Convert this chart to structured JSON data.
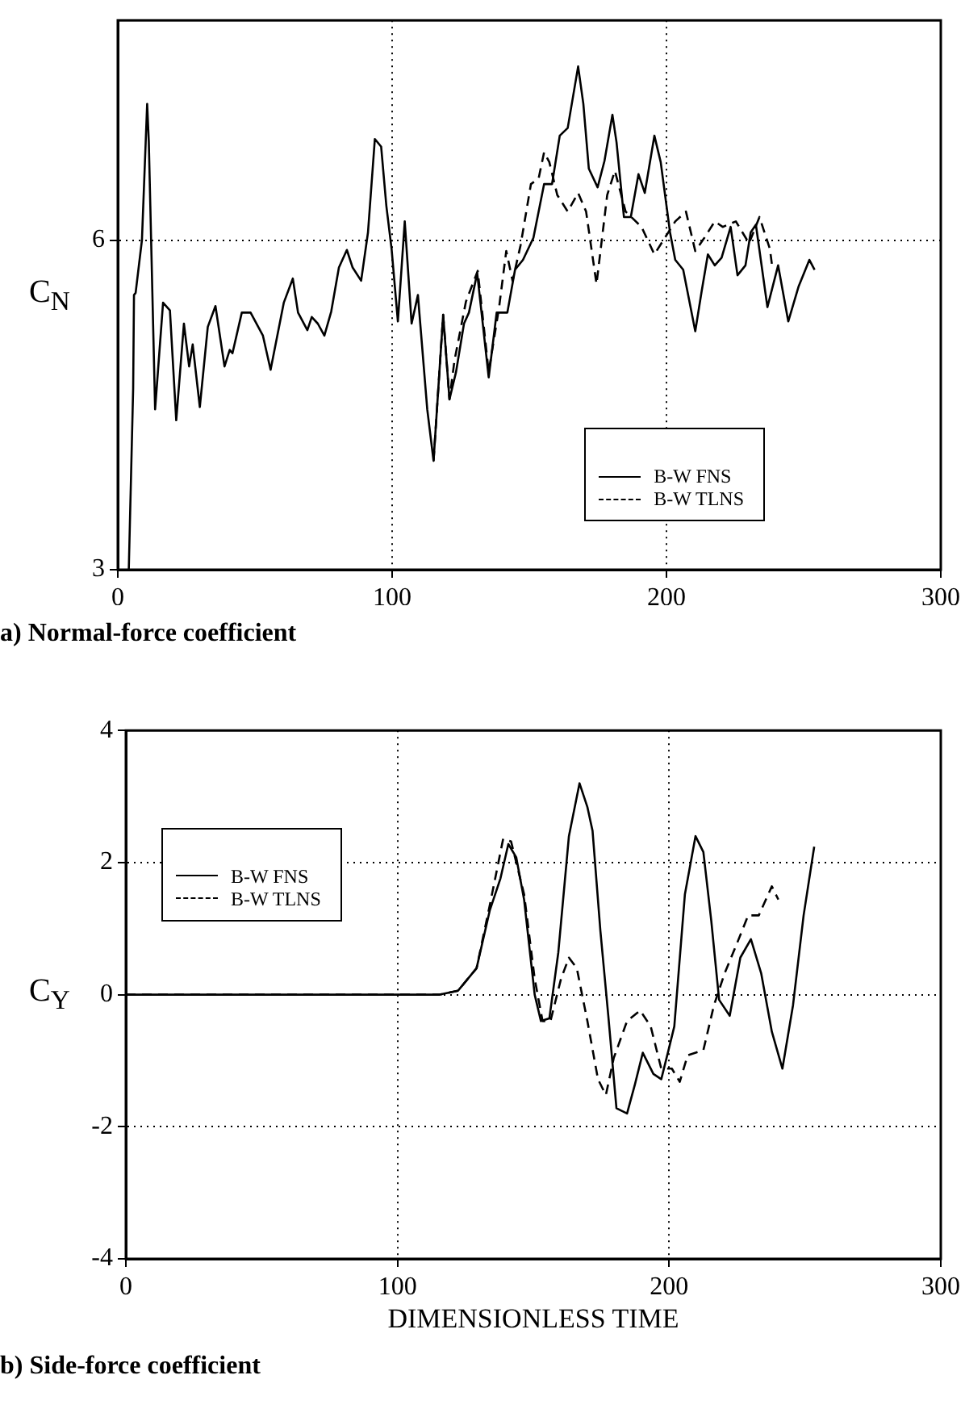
{
  "chart_data": [
    {
      "type": "line",
      "title": "a) Normal-force coefficient",
      "ylabel": "C$_{N}$",
      "xlim": [
        0,
        300
      ],
      "xticks": [
        0,
        100,
        200,
        300
      ],
      "ylim": [
        3,
        8
      ],
      "yticks": [
        3,
        6
      ],
      "grid": true,
      "legend": "bottom right",
      "marker": "none",
      "series": [
        {
          "name": "B-W FNS",
          "color": "#000000",
          "line_style": "solid",
          "x": [
            4,
            5.6,
            5.9,
            6.5,
            8.8,
            10.7,
            11.3,
            13.6,
            16.5,
            19,
            21.3,
            24.1,
            26,
            27.3,
            29.9,
            32.8,
            35.6,
            38.9,
            40.8,
            41.8,
            45.2,
            48.4,
            52.9,
            55.7,
            60.5,
            63.8,
            65.7,
            69.1,
            70.7,
            72.9,
            75.3,
            77.8,
            80.6,
            83.5,
            85.6,
            88.7,
            91.2,
            93.7,
            96,
            97.9,
            99.8,
            102.1,
            104.6,
            107.1,
            109.4,
            112.8,
            115.1,
            118.6,
            120.9,
            123.3,
            126.2,
            128,
            131,
            135.2,
            138.1,
            142,
            144.8,
            147.7,
            151.5,
            155.4,
            158.3,
            161.1,
            164,
            167.8,
            169.7,
            171.7,
            174.9,
            177.4,
            180.3,
            181.8,
            184.5,
            187,
            189.8,
            192.1,
            195.6,
            197.9,
            201.3,
            203.2,
            206.1,
            210.5,
            212.8,
            215.1,
            217.6,
            220.1,
            223.4,
            225.9,
            228.8,
            230.7,
            232.6,
            236.8,
            240.7,
            244.4,
            248.2,
            252.1,
            254
          ],
          "values": [
            3,
            4.65,
            5.5,
            5.52,
            6,
            7.24,
            6.9,
            4.46,
            5.43,
            5.36,
            4.36,
            5.24,
            4.85,
            5.05,
            4.48,
            5.21,
            5.4,
            4.85,
            5,
            4.97,
            5.34,
            5.34,
            5.13,
            4.82,
            5.43,
            5.65,
            5.34,
            5.18,
            5.3,
            5.24,
            5.13,
            5.35,
            5.75,
            5.91,
            5.75,
            5.63,
            6.07,
            6.92,
            6.85,
            6.31,
            5.92,
            5.26,
            6.17,
            5.24,
            5.5,
            4.46,
            3.99,
            5.32,
            4.55,
            4.8,
            5.24,
            5.34,
            5.7,
            4.75,
            5.34,
            5.34,
            5.73,
            5.82,
            6.02,
            6.51,
            6.51,
            6.95,
            7.02,
            7.58,
            7.24,
            6.65,
            6.48,
            6.72,
            7.14,
            6.89,
            6.21,
            6.21,
            6.6,
            6.43,
            6.95,
            6.71,
            6.07,
            5.82,
            5.73,
            5.17,
            5.53,
            5.87,
            5.77,
            5.84,
            6.12,
            5.68,
            5.77,
            6.07,
            6.14,
            5.39,
            5.77,
            5.26,
            5.58,
            5.82,
            5.73
          ]
        },
        {
          "name": "B-W TLNS",
          "color": "#000000",
          "line_style": "dashed",
          "x": [
            115.1,
            118.6,
            120.9,
            122.7,
            126.9,
            131.2,
            135.2,
            139,
            141.6,
            143.9,
            146.8,
            150.6,
            153.4,
            155.4,
            157.3,
            160.2,
            164,
            167.8,
            170.7,
            174.5,
            178.4,
            181.2,
            185.1,
            190.9,
            195.6,
            199.4,
            203.2,
            207.1,
            210.5,
            213.8,
            217.6,
            220.5,
            225.3,
            230.1,
            233.9,
            237.7,
            238.7
          ],
          "values": [
            3.99,
            5.32,
            4.55,
            4.9,
            5.44,
            5.72,
            4.8,
            5.39,
            5.9,
            5.63,
            5.95,
            6.51,
            6.56,
            6.8,
            6.71,
            6.41,
            6.26,
            6.43,
            6.26,
            5.6,
            6.41,
            6.63,
            6.26,
            6.12,
            5.87,
            6.02,
            6.17,
            6.26,
            5.9,
            6.02,
            6.17,
            6.12,
            6.17,
            5.97,
            6.21,
            5.92,
            5.73
          ]
        }
      ]
    },
    {
      "type": "line",
      "title": "b) Side-force coefficient",
      "xlabel": "DIMENSIONLESS TIME",
      "ylabel": "C$_{Y}$",
      "xlim": [
        0,
        300
      ],
      "xticks": [
        0,
        100,
        200,
        300
      ],
      "ylim": [
        -4,
        4
      ],
      "yticks": [
        -4,
        -2,
        0,
        2,
        4
      ],
      "grid": true,
      "legend": "top left",
      "marker": "none",
      "series": [
        {
          "name": "B-W FNS",
          "color": "#000000",
          "line_style": "solid",
          "x": [
            0,
            100,
            115.5,
            122.3,
            129.1,
            134,
            137.9,
            140.8,
            143.7,
            146.6,
            150.5,
            152.8,
            155.9,
            159.2,
            163.1,
            167,
            169.9,
            171.8,
            174.7,
            177.6,
            180.6,
            184.5,
            187.4,
            190.3,
            194.2,
            197.1,
            200,
            201.9,
            205.8,
            209.7,
            212.6,
            215.5,
            218.4,
            222.3,
            226.2,
            230.1,
            233.9,
            237.8,
            241.7,
            245.6,
            249.5,
            253.4
          ],
          "values": [
            0,
            0,
            0,
            0.06,
            0.4,
            1.28,
            1.76,
            2.28,
            2.08,
            1.44,
            0,
            -0.4,
            -0.36,
            0.64,
            2.4,
            3.2,
            2.84,
            2.48,
            0.96,
            -0.32,
            -1.72,
            -1.8,
            -1.36,
            -0.88,
            -1.2,
            -1.28,
            -0.8,
            -0.48,
            1.52,
            2.4,
            2.16,
            1.12,
            -0.08,
            -0.32,
            0.56,
            0.84,
            0.32,
            -0.56,
            -1.12,
            -0.16,
            1.2,
            2.24
          ]
        },
        {
          "name": "B-W TLNS",
          "color": "#000000",
          "line_style": "dashed",
          "x": [
            0,
            100,
            115.5,
            122.3,
            129.1,
            134,
            138.9,
            141.8,
            146.6,
            150.5,
            153.4,
            156.3,
            160.2,
            163.1,
            166,
            169.9,
            173.8,
            176.7,
            179.6,
            184.5,
            189.3,
            193.2,
            197.1,
            201,
            203.9,
            206.8,
            212.6,
            216.5,
            220.4,
            225.2,
            229.1,
            233,
            237.8,
            240.2
          ],
          "values": [
            0,
            0,
            0,
            0.06,
            0.4,
            1.36,
            2.36,
            2.32,
            1.52,
            0.24,
            -0.4,
            -0.4,
            0.24,
            0.56,
            0.4,
            -0.4,
            -1.28,
            -1.52,
            -0.96,
            -0.4,
            -0.24,
            -0.48,
            -1.12,
            -1.12,
            -1.32,
            -0.92,
            -0.84,
            -0.16,
            0.32,
            0.8,
            1.2,
            1.2,
            1.64,
            1.44
          ]
        }
      ]
    }
  ]
}
